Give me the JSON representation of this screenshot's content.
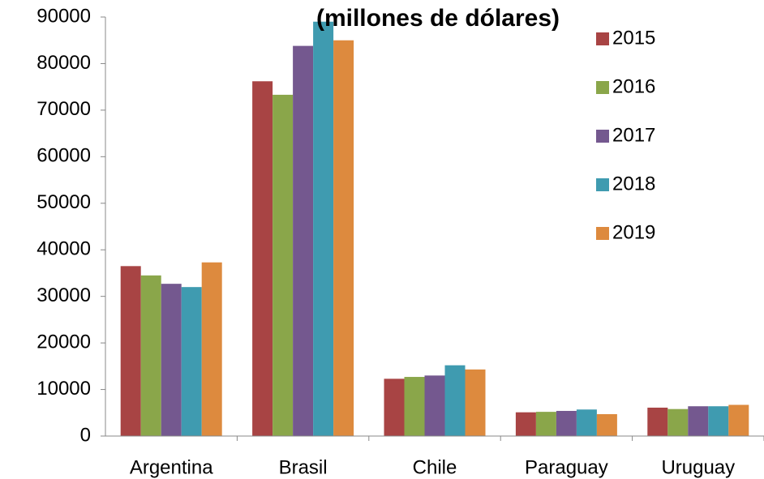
{
  "chart_data": {
    "type": "bar",
    "title": "(millones de dólares)",
    "categories": [
      "Argentina",
      "Brasil",
      "Chile",
      "Paraguay",
      "Uruguay"
    ],
    "series": [
      {
        "name": "2015",
        "color": "#a84444",
        "values": [
          36500,
          76200,
          12300,
          5100,
          6100
        ]
      },
      {
        "name": "2016",
        "color": "#8aa64a",
        "values": [
          34500,
          73300,
          12700,
          5200,
          5800
        ]
      },
      {
        "name": "2017",
        "color": "#74588f",
        "values": [
          32700,
          83800,
          13000,
          5400,
          6400
        ]
      },
      {
        "name": "2018",
        "color": "#3f9bb0",
        "values": [
          32000,
          89000,
          15200,
          5700,
          6400
        ]
      },
      {
        "name": "2019",
        "color": "#dd8a3e",
        "values": [
          37300,
          85000,
          14300,
          4700,
          6700
        ]
      }
    ],
    "ylim": [
      0,
      90000
    ],
    "yticks": [
      0,
      10000,
      20000,
      30000,
      40000,
      50000,
      60000,
      70000,
      80000,
      90000
    ]
  }
}
